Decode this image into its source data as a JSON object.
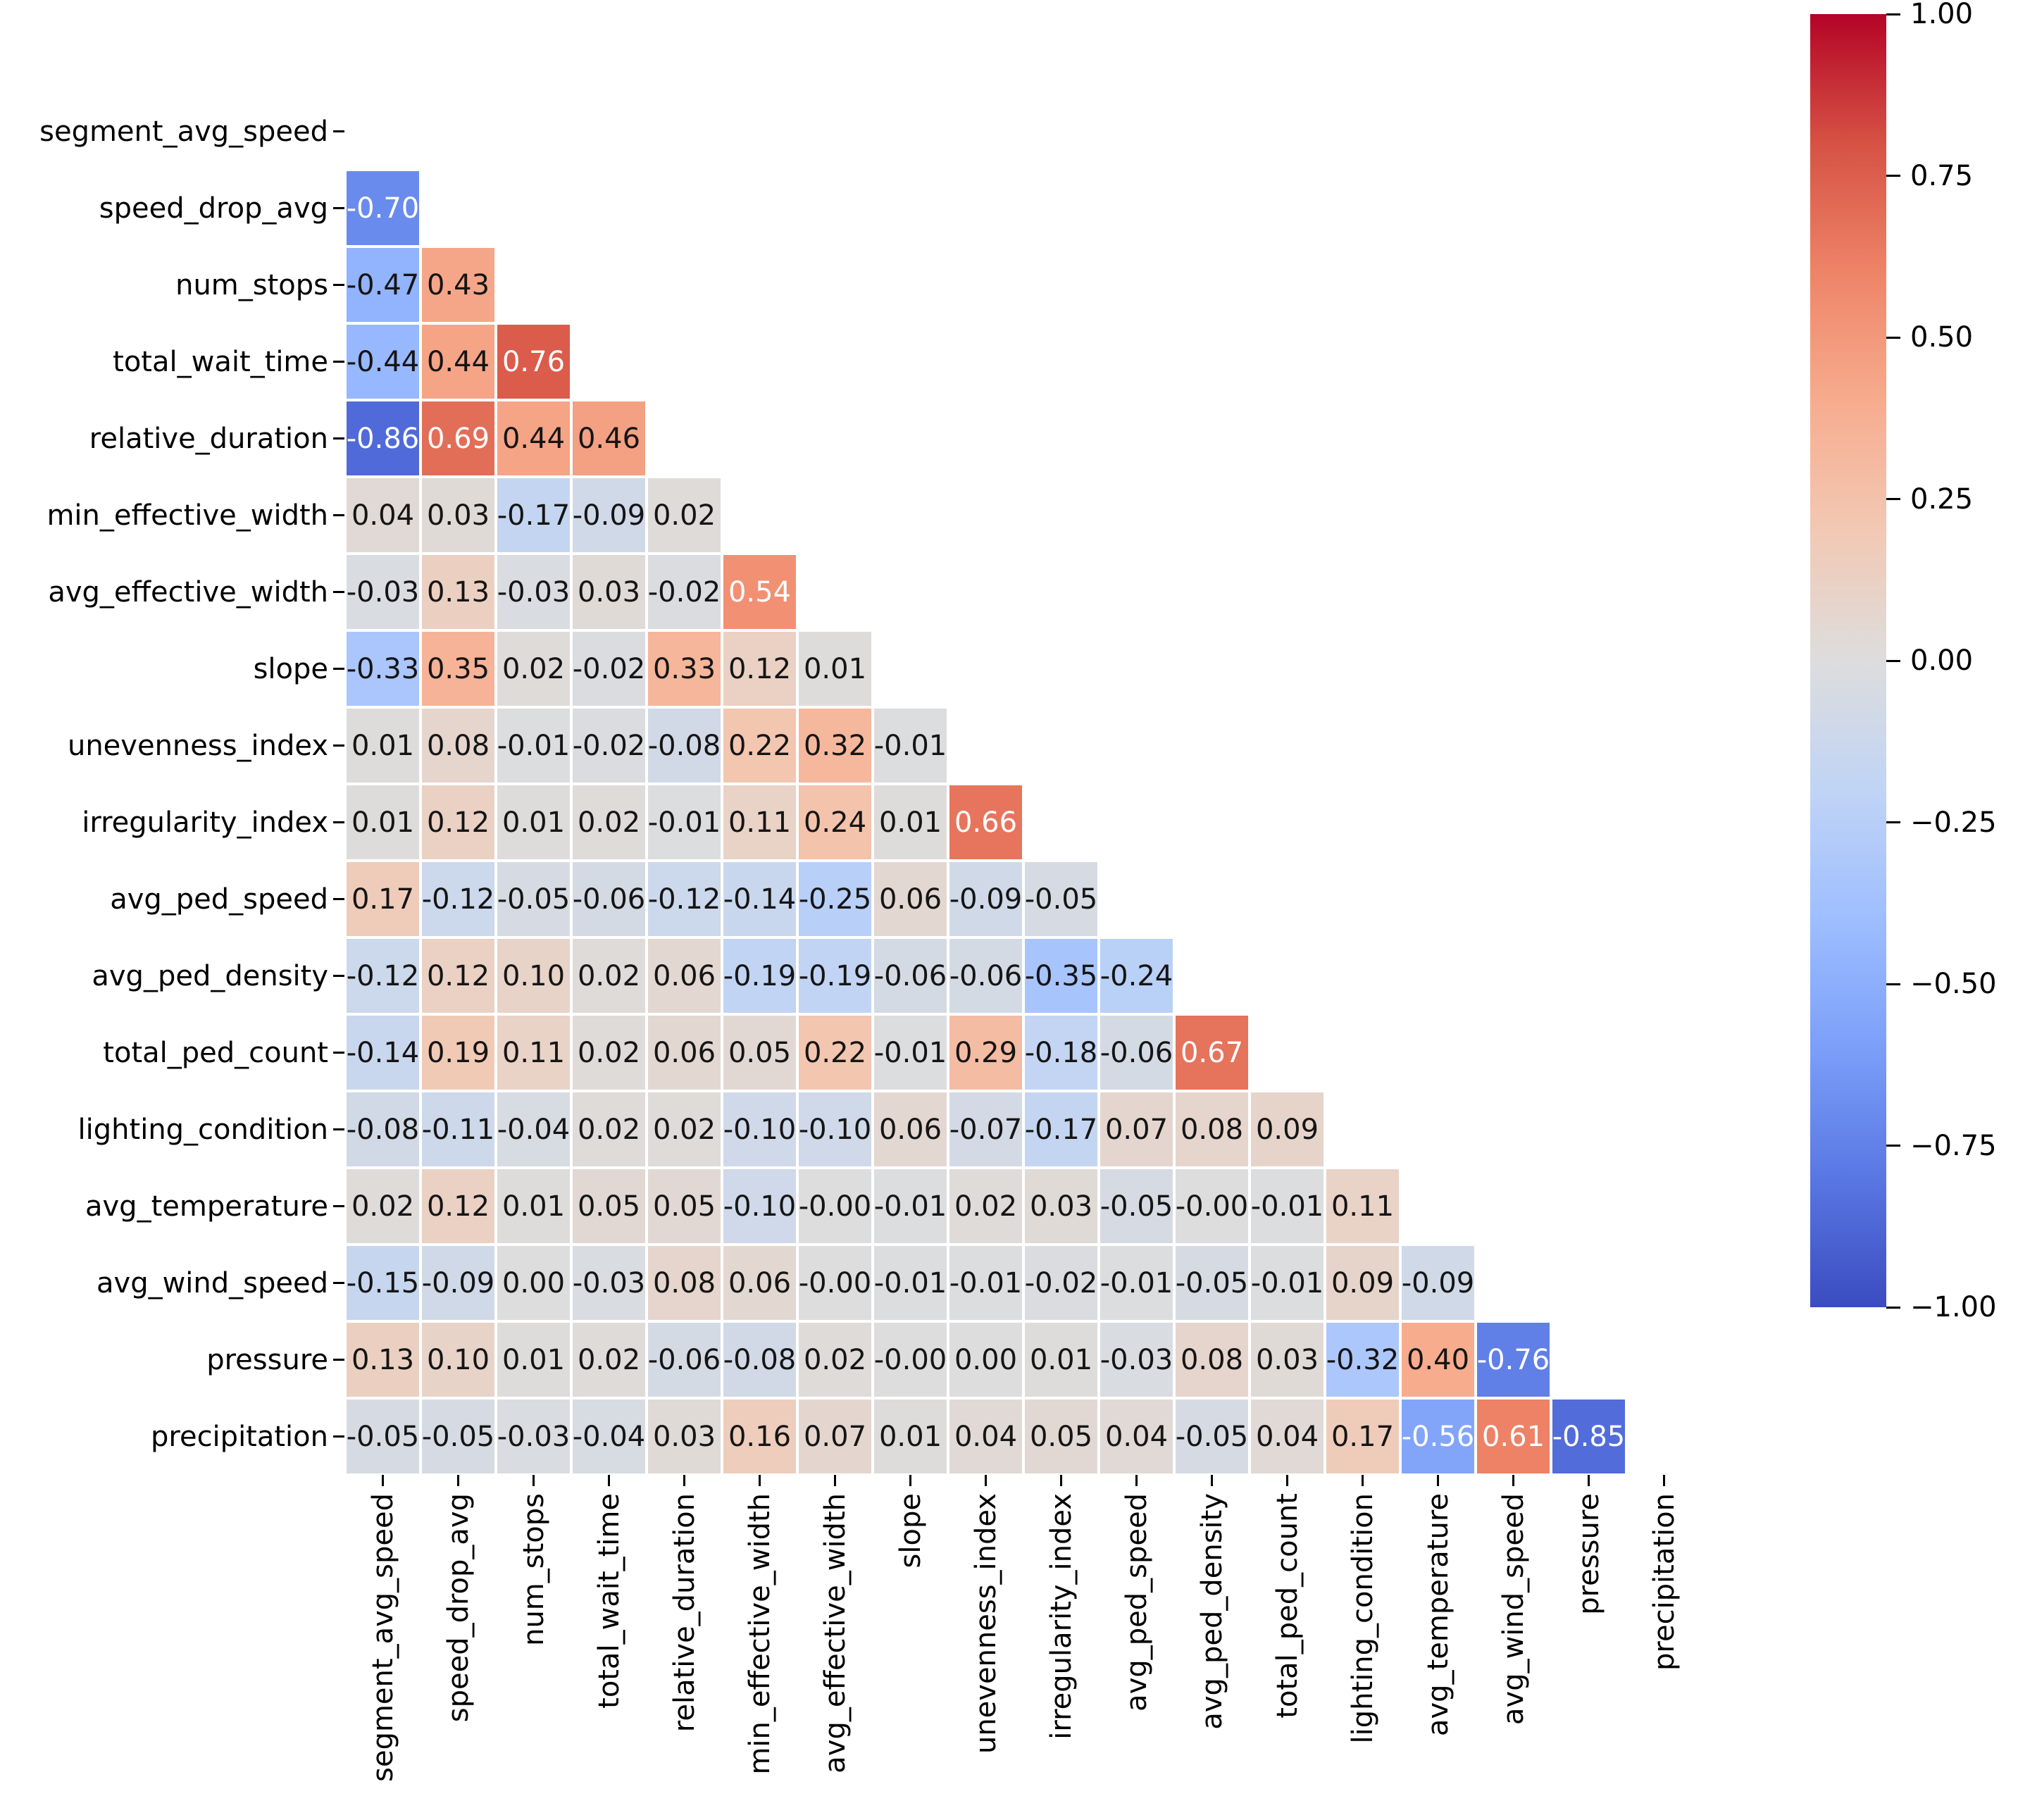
{
  "chart_data": {
    "type": "heatmap",
    "subtype": "lower-triangle-correlation-matrix",
    "title": "",
    "variables": [
      "segment_avg_speed",
      "speed_drop_avg",
      "num_stops",
      "total_wait_time",
      "relative_duration",
      "min_effective_width",
      "avg_effective_width",
      "slope",
      "unevenness_index",
      "irregularity_index",
      "avg_ped_speed",
      "avg_ped_density",
      "total_ped_count",
      "lighting_condition",
      "avg_temperature",
      "avg_wind_speed",
      "pressure",
      "precipitation"
    ],
    "rows": [
      {
        "name": "segment_avg_speed",
        "values": []
      },
      {
        "name": "speed_drop_avg",
        "values": [
          "-0.70"
        ]
      },
      {
        "name": "num_stops",
        "values": [
          "-0.47",
          "0.43"
        ]
      },
      {
        "name": "total_wait_time",
        "values": [
          "-0.44",
          "0.44",
          "0.76"
        ]
      },
      {
        "name": "relative_duration",
        "values": [
          "-0.86",
          "0.69",
          "0.44",
          "0.46"
        ]
      },
      {
        "name": "min_effective_width",
        "values": [
          "0.04",
          "0.03",
          "-0.17",
          "-0.09",
          "0.02"
        ]
      },
      {
        "name": "avg_effective_width",
        "values": [
          "-0.03",
          "0.13",
          "-0.03",
          "0.03",
          "-0.02",
          "0.54"
        ]
      },
      {
        "name": "slope",
        "values": [
          "-0.33",
          "0.35",
          "0.02",
          "-0.02",
          "0.33",
          "0.12",
          "0.01"
        ]
      },
      {
        "name": "unevenness_index",
        "values": [
          "0.01",
          "0.08",
          "-0.01",
          "-0.02",
          "-0.08",
          "0.22",
          "0.32",
          "-0.01"
        ]
      },
      {
        "name": "irregularity_index",
        "values": [
          "0.01",
          "0.12",
          "0.01",
          "0.02",
          "-0.01",
          "0.11",
          "0.24",
          "0.01",
          "0.66"
        ]
      },
      {
        "name": "avg_ped_speed",
        "values": [
          "0.17",
          "-0.12",
          "-0.05",
          "-0.06",
          "-0.12",
          "-0.14",
          "-0.25",
          "0.06",
          "-0.09",
          "-0.05"
        ]
      },
      {
        "name": "avg_ped_density",
        "values": [
          "-0.12",
          "0.12",
          "0.10",
          "0.02",
          "0.06",
          "-0.19",
          "-0.19",
          "-0.06",
          "-0.06",
          "-0.35",
          "-0.24"
        ]
      },
      {
        "name": "total_ped_count",
        "values": [
          "-0.14",
          "0.19",
          "0.11",
          "0.02",
          "0.06",
          "0.05",
          "0.22",
          "-0.01",
          "0.29",
          "-0.18",
          "-0.06",
          "0.67"
        ]
      },
      {
        "name": "lighting_condition",
        "values": [
          "-0.08",
          "-0.11",
          "-0.04",
          "0.02",
          "0.02",
          "-0.10",
          "-0.10",
          "0.06",
          "-0.07",
          "-0.17",
          "0.07",
          "0.08",
          "0.09"
        ]
      },
      {
        "name": "avg_temperature",
        "values": [
          "0.02",
          "0.12",
          "0.01",
          "0.05",
          "0.05",
          "-0.10",
          "-0.00",
          "-0.01",
          "0.02",
          "0.03",
          "-0.05",
          "-0.00",
          "-0.01",
          "0.11"
        ]
      },
      {
        "name": "avg_wind_speed",
        "values": [
          "-0.15",
          "-0.09",
          "0.00",
          "-0.03",
          "0.08",
          "0.06",
          "-0.00",
          "-0.01",
          "-0.01",
          "-0.02",
          "-0.01",
          "-0.05",
          "-0.01",
          "0.09",
          "-0.09"
        ]
      },
      {
        "name": "pressure",
        "values": [
          "0.13",
          "0.10",
          "0.01",
          "0.02",
          "-0.06",
          "-0.08",
          "0.02",
          "-0.00",
          "0.00",
          "0.01",
          "-0.03",
          "0.08",
          "0.03",
          "-0.32",
          "0.40",
          "-0.76"
        ]
      },
      {
        "name": "precipitation",
        "values": [
          "-0.05",
          "-0.05",
          "-0.03",
          "-0.04",
          "0.03",
          "0.16",
          "0.07",
          "0.01",
          "0.04",
          "0.05",
          "0.04",
          "-0.05",
          "0.04",
          "0.17",
          "-0.56",
          "0.61",
          "-0.85"
        ]
      }
    ],
    "mask": "upper triangle and diagonal hidden (white)",
    "annotation_format": ".2f",
    "colormap": {
      "name": "coolwarm",
      "anchors": [
        {
          "t": 0.0,
          "hex": "#3B4CC0"
        },
        {
          "t": 0.1,
          "hex": "#5977E3"
        },
        {
          "t": 0.2,
          "hex": "#7B9FF9"
        },
        {
          "t": 0.3,
          "hex": "#9EBEFF"
        },
        {
          "t": 0.4,
          "hex": "#C0D4F5"
        },
        {
          "t": 0.5,
          "hex": "#DDDDDD"
        },
        {
          "t": 0.6,
          "hex": "#F2C9B4"
        },
        {
          "t": 0.7,
          "hex": "#F7AC8E"
        },
        {
          "t": 0.8,
          "hex": "#EE8468"
        },
        {
          "t": 0.9,
          "hex": "#D65244"
        },
        {
          "t": 1.0,
          "hex": "#B40426"
        }
      ]
    },
    "vmin": -1.0,
    "vmax": 1.0,
    "annotation_text_dark": "#151515",
    "annotation_text_light": "#FFFFFF",
    "white_text_abs_threshold": 0.5,
    "grid_gap_color": "#FFFFFF",
    "legend_position": "right",
    "colorbar": {
      "tick_labels": [
        "1.00",
        "0.75",
        "0.50",
        "0.25",
        "0.00",
        "−0.25",
        "−0.50",
        "−0.75",
        "−1.00"
      ]
    }
  },
  "layout_text": {
    "x_axis_labels_rotation_deg": 90
  }
}
